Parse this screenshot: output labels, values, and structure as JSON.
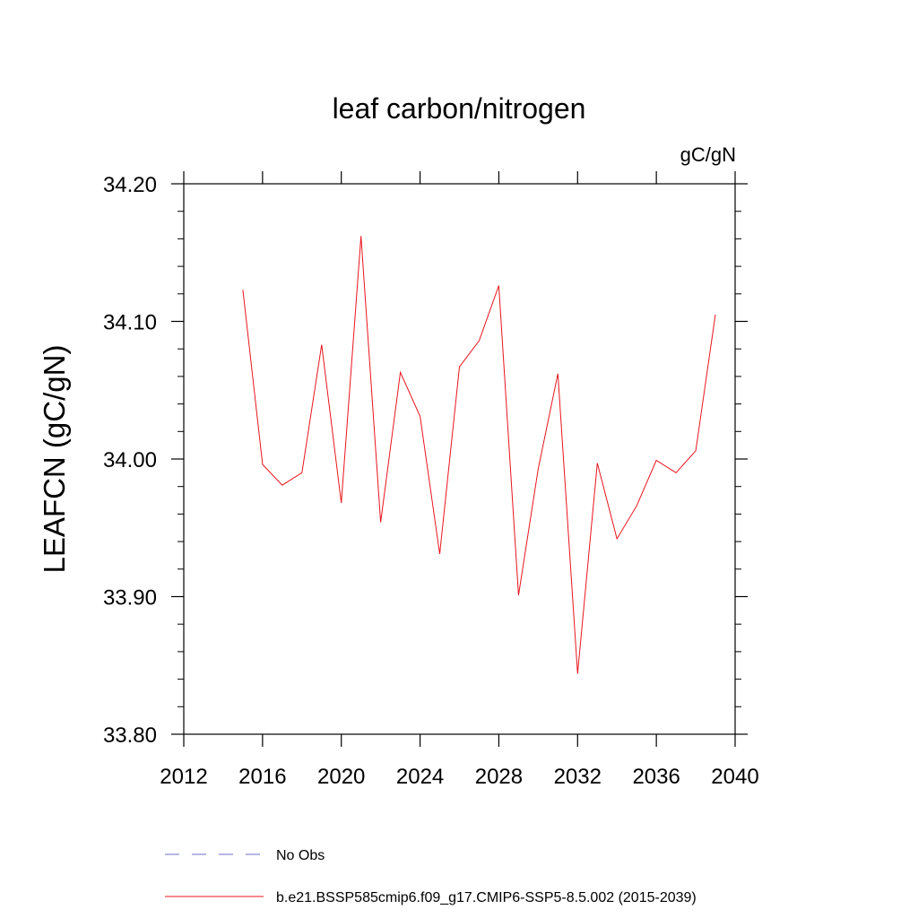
{
  "chart_data": {
    "type": "line",
    "title": "leaf carbon/nitrogen",
    "units_label": "gC/gN",
    "ylabel": "LEAFCN  (gC/gN)",
    "xlabel": "",
    "xlim": [
      2012,
      2040
    ],
    "ylim": [
      33.8,
      34.2
    ],
    "x_ticks": [
      2012,
      2016,
      2020,
      2024,
      2028,
      2032,
      2036,
      2040
    ],
    "y_ticks": [
      "33.80",
      "33.90",
      "34.00",
      "34.10",
      "34.20"
    ],
    "grid": false,
    "legend_position": "bottom",
    "series": [
      {
        "name": "b.e21.BSSP585cmip6.f09_g17.CMIP6-SSP5-8.5.002 (2015-2039)",
        "color": "#e8141c",
        "style": "solid",
        "x": [
          2015,
          2016,
          2017,
          2018,
          2019,
          2020,
          2021,
          2022,
          2023,
          2024,
          2025,
          2026,
          2027,
          2028,
          2029,
          2030,
          2031,
          2032,
          2033,
          2034,
          2035,
          2036,
          2037,
          2038,
          2039
        ],
        "y": [
          34.123,
          33.996,
          33.981,
          33.99,
          34.083,
          33.968,
          34.162,
          33.954,
          34.063,
          34.031,
          33.931,
          34.067,
          34.086,
          34.126,
          33.901,
          33.993,
          34.062,
          33.844,
          33.997,
          33.942,
          33.966,
          33.999,
          33.99,
          34.006,
          34.105
        ]
      },
      {
        "name": "No Obs",
        "color": "#6c6cc8",
        "style": "dashed",
        "x": [],
        "y": []
      }
    ]
  }
}
